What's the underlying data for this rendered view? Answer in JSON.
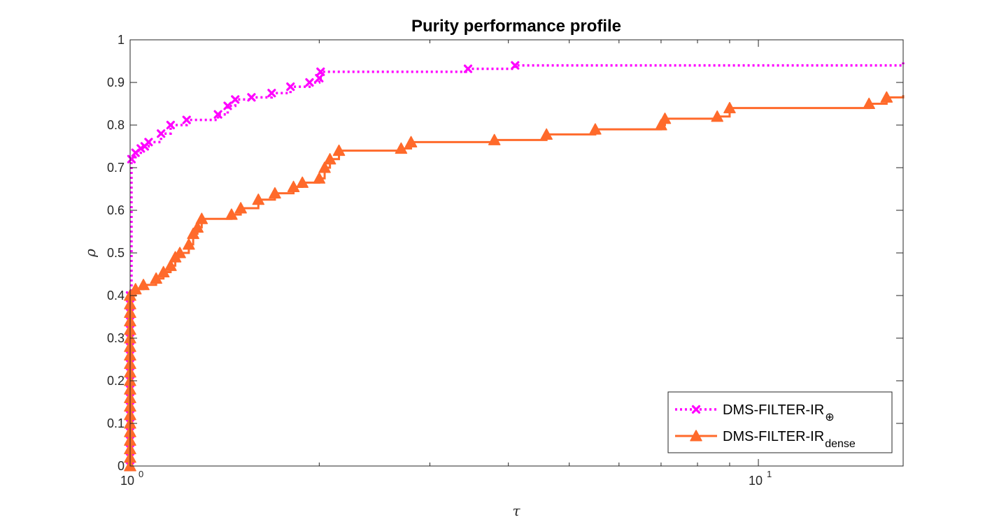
{
  "chart_data": {
    "type": "line",
    "title": "Purity performance profile",
    "xlabel": "τ",
    "ylabel": "ρ",
    "xscale": "log",
    "xlim": [
      1,
      17
    ],
    "ylim": [
      0,
      1
    ],
    "yticks": [
      "0",
      "0.1",
      "0.2",
      "0.3",
      "0.4",
      "0.5",
      "0.6",
      "0.7",
      "0.8",
      "0.9",
      "1"
    ],
    "xticks": [
      {
        "value": 1,
        "base": "10",
        "exp": "0"
      },
      {
        "value": 10,
        "base": "10",
        "exp": "1"
      }
    ],
    "grid": false,
    "legend_position": "bottom-right",
    "series": [
      {
        "name": "DMS-FILTER-IR",
        "name_subscript": "⊕",
        "color": "#ff00ff",
        "line_style": "dotted",
        "marker": "x",
        "points": [
          [
            1.0,
            0.0
          ],
          [
            1.0,
            0.4
          ],
          [
            1.005,
            0.72
          ],
          [
            1.02,
            0.735
          ],
          [
            1.04,
            0.745
          ],
          [
            1.055,
            0.75
          ],
          [
            1.07,
            0.76
          ],
          [
            1.12,
            0.78
          ],
          [
            1.16,
            0.8
          ],
          [
            1.23,
            0.812
          ],
          [
            1.38,
            0.825
          ],
          [
            1.43,
            0.845
          ],
          [
            1.47,
            0.86
          ],
          [
            1.56,
            0.865
          ],
          [
            1.68,
            0.875
          ],
          [
            1.8,
            0.89
          ],
          [
            1.93,
            0.9
          ],
          [
            2.0,
            0.91
          ],
          [
            2.01,
            0.925
          ],
          [
            3.45,
            0.932
          ],
          [
            4.1,
            0.94
          ],
          [
            17,
            0.947
          ]
        ]
      },
      {
        "name": "DMS-FILTER-IR",
        "name_subscript": "dense",
        "color": "#ff6a2b",
        "line_style": "solid",
        "marker": "triangle",
        "points": [
          [
            1.0,
            0.0
          ],
          [
            1.0,
            0.4
          ],
          [
            1.02,
            0.415
          ],
          [
            1.05,
            0.425
          ],
          [
            1.1,
            0.44
          ],
          [
            1.13,
            0.455
          ],
          [
            1.16,
            0.47
          ],
          [
            1.18,
            0.49
          ],
          [
            1.2,
            0.5
          ],
          [
            1.24,
            0.52
          ],
          [
            1.26,
            0.545
          ],
          [
            1.28,
            0.56
          ],
          [
            1.3,
            0.58
          ],
          [
            1.45,
            0.59
          ],
          [
            1.5,
            0.605
          ],
          [
            1.6,
            0.625
          ],
          [
            1.7,
            0.64
          ],
          [
            1.82,
            0.655
          ],
          [
            1.88,
            0.665
          ],
          [
            2.0,
            0.675
          ],
          [
            2.04,
            0.7
          ],
          [
            2.08,
            0.72
          ],
          [
            2.15,
            0.74
          ],
          [
            2.7,
            0.745
          ],
          [
            2.8,
            0.76
          ],
          [
            3.8,
            0.765
          ],
          [
            4.6,
            0.778
          ],
          [
            5.5,
            0.79
          ],
          [
            7.0,
            0.8
          ],
          [
            7.1,
            0.815
          ],
          [
            8.6,
            0.82
          ],
          [
            9.0,
            0.84
          ],
          [
            15.0,
            0.85
          ],
          [
            16.0,
            0.865
          ],
          [
            17,
            0.87
          ]
        ]
      }
    ]
  }
}
